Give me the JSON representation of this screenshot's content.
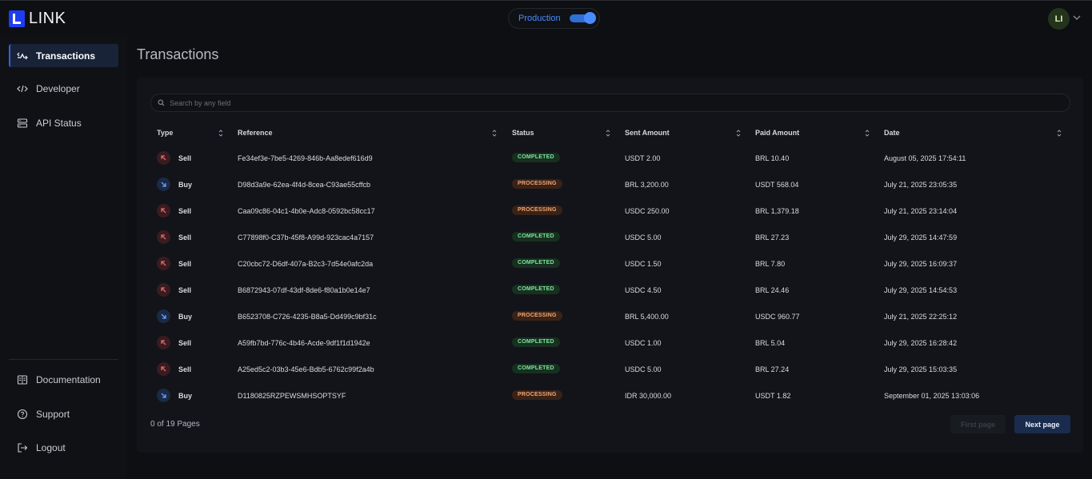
{
  "app": {
    "logo_text": "LINK"
  },
  "environment": {
    "label": "Production",
    "enabled": true
  },
  "user": {
    "initials": "LI"
  },
  "sidebar": {
    "items": [
      {
        "label": "Transactions",
        "icon": "transactions-icon",
        "active": true
      },
      {
        "label": "Developer",
        "icon": "code-icon",
        "active": false
      },
      {
        "label": "API Status",
        "icon": "server-icon",
        "active": false
      }
    ],
    "bottom_items": [
      {
        "label": "Documentation",
        "icon": "book-icon"
      },
      {
        "label": "Support",
        "icon": "help-icon"
      },
      {
        "label": "Logout",
        "icon": "logout-icon"
      }
    ]
  },
  "page": {
    "title": "Transactions"
  },
  "search": {
    "placeholder": "Search by any field"
  },
  "table": {
    "columns": [
      "Type",
      "Reference",
      "Status",
      "Sent Amount",
      "Paid Amount",
      "Date"
    ],
    "rows": [
      {
        "type": "Sell",
        "reference": "Fe34ef3e-7be5-4269-846b-Aa8edef616d9",
        "status": "COMPLETED",
        "sent": "USDT 2.00",
        "paid": "BRL 10.40",
        "date": "August 05, 2025 17:54:11"
      },
      {
        "type": "Buy",
        "reference": "D98d3a9e-62ea-4f4d-8cea-C93ae55cffcb",
        "status": "PROCESSING",
        "sent": "BRL 3,200.00",
        "paid": "USDT 568.04",
        "date": "July 21, 2025 23:05:35"
      },
      {
        "type": "Sell",
        "reference": "Caa09c86-04c1-4b0e-Adc8-0592bc58cc17",
        "status": "PROCESSING",
        "sent": "USDC 250.00",
        "paid": "BRL 1,379.18",
        "date": "July 21, 2025 23:14:04"
      },
      {
        "type": "Sell",
        "reference": "C77898f0-C37b-45f8-A99d-923cac4a7157",
        "status": "COMPLETED",
        "sent": "USDC 5.00",
        "paid": "BRL 27.23",
        "date": "July 29, 2025 14:47:59"
      },
      {
        "type": "Sell",
        "reference": "C20cbc72-D6df-407a-B2c3-7d54e0afc2da",
        "status": "COMPLETED",
        "sent": "USDC 1.50",
        "paid": "BRL 7.80",
        "date": "July 29, 2025 16:09:37"
      },
      {
        "type": "Sell",
        "reference": "B6872943-07df-43df-8de6-f80a1b0e14e7",
        "status": "COMPLETED",
        "sent": "USDC 4.50",
        "paid": "BRL 24.46",
        "date": "July 29, 2025 14:54:53"
      },
      {
        "type": "Buy",
        "reference": "B6523708-C726-4235-B8a5-Dd499c9bf31c",
        "status": "PROCESSING",
        "sent": "BRL 5,400.00",
        "paid": "USDC 960.77",
        "date": "July 21, 2025 22:25:12"
      },
      {
        "type": "Sell",
        "reference": "A59fb7bd-776c-4b46-Acde-9df1f1d1942e",
        "status": "COMPLETED",
        "sent": "USDC 1.00",
        "paid": "BRL 5.04",
        "date": "July 29, 2025 16:28:42"
      },
      {
        "type": "Sell",
        "reference": "A25ed5c2-03b3-45e6-Bdb5-6762c99f2a4b",
        "status": "COMPLETED",
        "sent": "USDC 5.00",
        "paid": "BRL 27.24",
        "date": "July 29, 2025 15:03:35"
      },
      {
        "type": "Buy",
        "reference": "D1180825RZPEWSMHSOPTSYF",
        "status": "PROCESSING",
        "sent": "IDR 30,000.00",
        "paid": "USDT 1.82",
        "date": "September 01, 2025 13:03:06"
      }
    ]
  },
  "pagination": {
    "summary": "0 of 19 Pages",
    "first_label": "First page",
    "next_label": "Next page"
  },
  "colors": {
    "accent": "#2f63e0",
    "completed": "#7fe3a0",
    "processing": "#f1a775",
    "sell": "#e06a6a",
    "buy": "#6aa0ff"
  }
}
